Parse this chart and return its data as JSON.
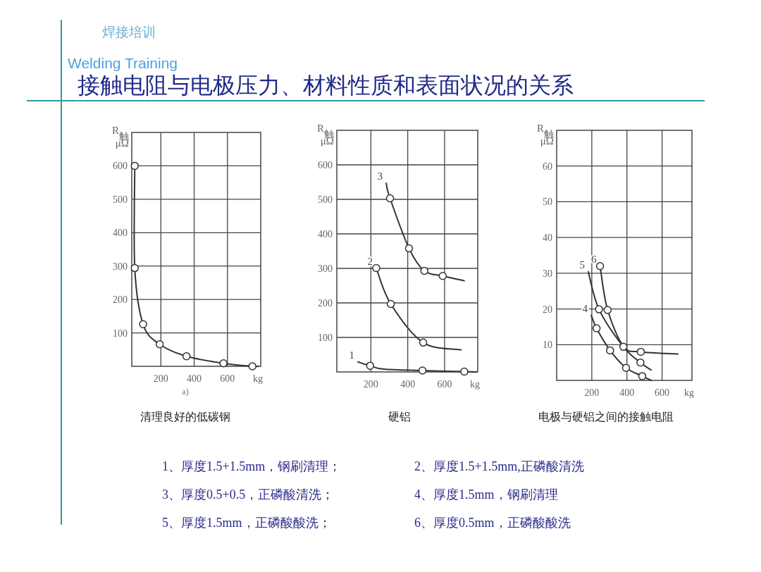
{
  "chart_data": [
    {
      "type": "other",
      "title": "接触电阻与电极压力、材料性质和表面状况的关系",
      "annotations": [
        "焊接培训",
        "Welding Training",
        "1、厚度1.5+1.5mm，钢刷清理；",
        "2、厚度1.5+1.5mm,正磷酸清洗",
        "3、厚度0.5+0.5，正磷酸清洗；",
        "4、厚度1.5mm，钢刷清理",
        "5、厚度1.5mm，正磷酸酸洗；",
        "6、厚度0.5mm，正磷酸酸洗"
      ]
    },
    {
      "type": "line",
      "xlabel": "kg",
      "ylabel": "R$_{触}$\nμΩ",
      "xlim": [
        25,
        800
      ],
      "ylim": [
        0,
        700
      ],
      "xticks": [
        200,
        400,
        600
      ],
      "yticks": [
        100,
        200,
        300,
        400,
        500,
        600
      ],
      "grid": true,
      "annotations": [
        "a)",
        "清理良好的低碳钢"
      ],
      "series": [
        {
          "type": "line",
          "color": "#333333",
          "x": [
            43,
            43,
            93,
            193,
            354,
            576,
            750,
            786
          ],
          "values": [
            600,
            294,
            126,
            66,
            30,
            9,
            0,
            0
          ]
        },
        {
          "type": "scatter",
          "marker": "circle",
          "color": "#333333",
          "x": [
            43,
            43,
            93,
            193,
            354,
            576,
            750
          ],
          "values": [
            600,
            294,
            126,
            66,
            30,
            9,
            0
          ]
        }
      ]
    },
    {
      "type": "line",
      "xlabel": "kg",
      "ylabel": "R$_{触}$\nμΩ",
      "xlim": [
        15,
        780
      ],
      "ylim": [
        0,
        700
      ],
      "xticks": [
        200,
        400,
        600
      ],
      "yticks": [
        100,
        200,
        300,
        400,
        500,
        600
      ],
      "grid": true,
      "annotations": [
        "硬铝"
      ],
      "series": [
        {
          "type": "line",
          "name": "1",
          "color": "#333333",
          "x": [
            130,
            196,
            270,
            480,
            707,
            773
          ],
          "values": [
            29,
            18,
            8,
            4,
            1,
            0
          ]
        },
        {
          "type": "line",
          "name": "2",
          "color": "#333333",
          "x": [
            229,
            308,
            484,
            690
          ],
          "values": [
            301,
            197,
            85,
            64
          ]
        },
        {
          "type": "line",
          "name": "3",
          "color": "#333333",
          "x": [
            283,
            304,
            407,
            490,
            590,
            707
          ],
          "values": [
            547,
            503,
            358,
            293,
            278,
            264
          ]
        },
        {
          "type": "scatter",
          "marker": "circle",
          "color": "#333333",
          "x": [
            196,
            480,
            707,
            229,
            308,
            484,
            304,
            407,
            490,
            590
          ],
          "values": [
            18,
            4,
            1,
            301,
            197,
            85,
            503,
            358,
            293,
            278
          ]
        }
      ]
    },
    {
      "type": "line",
      "xlabel": "kg",
      "ylabel": "R$_{触}$\nμΩ",
      "xlim": [
        0,
        770
      ],
      "ylim": [
        0,
        70
      ],
      "xticks": [
        200,
        400,
        600
      ],
      "yticks": [
        10,
        20,
        30,
        40,
        50,
        60
      ],
      "grid": true,
      "annotations": [
        "电极与硬铝之间的接触电阻"
      ],
      "series": [
        {
          "type": "line",
          "name": "4",
          "color": "#333333",
          "x": [
            197,
            227,
            304,
            395,
            487,
            538
          ],
          "values": [
            18.2,
            14.6,
            8.4,
            3.5,
            1.2,
            0
          ]
        },
        {
          "type": "line",
          "name": "5",
          "color": "#333333",
          "x": [
            180,
            241,
            380,
            477,
            538
          ],
          "values": [
            30.4,
            19.9,
            9.4,
            5,
            2.9
          ]
        },
        {
          "type": "line",
          "name": "6",
          "color": "#333333",
          "x": [
            247,
            290,
            382,
            479,
            690
          ],
          "values": [
            32,
            19.7,
            9.4,
            8,
            7.4
          ]
        },
        {
          "type": "scatter",
          "marker": "circle",
          "color": "#333333",
          "x": [
            227,
            304,
            395,
            487,
            241,
            380,
            477,
            247,
            290,
            479
          ],
          "values": [
            14.6,
            8.4,
            3.5,
            1.2,
            19.9,
            9.4,
            5,
            32,
            19.7,
            8
          ]
        }
      ]
    }
  ]
}
